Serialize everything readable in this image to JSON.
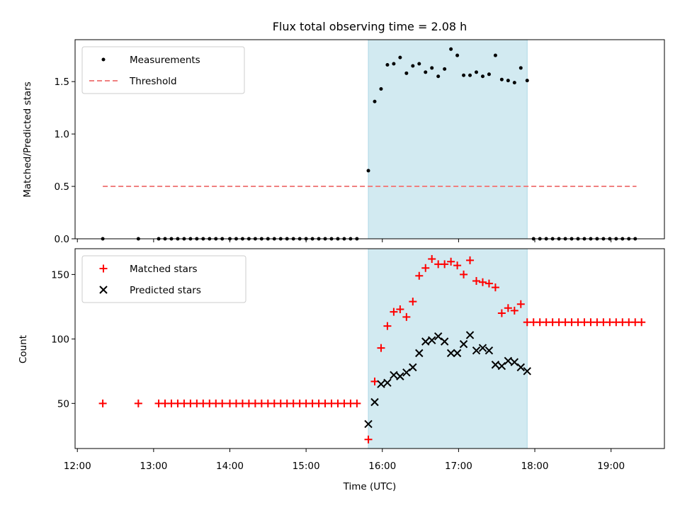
{
  "chart_data": {
    "title": "Flux total observing time = 2.08 h",
    "xlabel": "Time (UTC)",
    "x_ticks": [
      "12:00",
      "13:00",
      "14:00",
      "15:00",
      "16:00",
      "17:00",
      "18:00",
      "19:00"
    ],
    "highlight_span": {
      "start": "15:49",
      "end": "17:54",
      "color": "#add8e6"
    },
    "panels": [
      {
        "type": "scatter",
        "ylabel": "Matched/Predicted stars",
        "ylim": [
          0,
          1.9
        ],
        "y_ticks": [
          0.0,
          0.5,
          1.0,
          1.5
        ],
        "y_tick_labels": [
          "0.0",
          "0.5",
          "1.0",
          "1.5"
        ],
        "legend_position": "top-left",
        "threshold": {
          "name": "Threshold",
          "value": 0.5,
          "x_start": "12:20",
          "x_end": "19:20",
          "color": "#f08080"
        },
        "series": [
          {
            "name": "Measurements",
            "marker": "dot",
            "color": "#000000",
            "points": [
              [
                "12:20",
                0
              ],
              [
                "12:48",
                0
              ],
              [
                "13:04",
                0
              ],
              [
                "13:09",
                0
              ],
              [
                "13:14",
                0
              ],
              [
                "13:19",
                0
              ],
              [
                "13:24",
                0
              ],
              [
                "13:29",
                0
              ],
              [
                "13:34",
                0
              ],
              [
                "13:39",
                0
              ],
              [
                "13:44",
                0
              ],
              [
                "13:49",
                0
              ],
              [
                "13:54",
                0
              ],
              [
                "14:00",
                0
              ],
              [
                "14:05",
                0
              ],
              [
                "14:10",
                0
              ],
              [
                "14:15",
                0
              ],
              [
                "14:20",
                0
              ],
              [
                "14:25",
                0
              ],
              [
                "14:30",
                0
              ],
              [
                "14:35",
                0
              ],
              [
                "14:40",
                0
              ],
              [
                "14:45",
                0
              ],
              [
                "14:50",
                0
              ],
              [
                "14:55",
                0
              ],
              [
                "15:00",
                0
              ],
              [
                "15:05",
                0
              ],
              [
                "15:10",
                0
              ],
              [
                "15:15",
                0
              ],
              [
                "15:20",
                0
              ],
              [
                "15:25",
                0
              ],
              [
                "15:30",
                0
              ],
              [
                "15:35",
                0
              ],
              [
                "15:40",
                0
              ],
              [
                "15:49",
                0.65
              ],
              [
                "15:54",
                1.31
              ],
              [
                "15:59",
                1.43
              ],
              [
                "16:04",
                1.66
              ],
              [
                "16:09",
                1.67
              ],
              [
                "16:14",
                1.73
              ],
              [
                "16:19",
                1.58
              ],
              [
                "16:24",
                1.65
              ],
              [
                "16:29",
                1.67
              ],
              [
                "16:34",
                1.59
              ],
              [
                "16:39",
                1.63
              ],
              [
                "16:44",
                1.55
              ],
              [
                "16:49",
                1.62
              ],
              [
                "16:54",
                1.81
              ],
              [
                "16:59",
                1.75
              ],
              [
                "17:04",
                1.56
              ],
              [
                "17:09",
                1.56
              ],
              [
                "17:14",
                1.59
              ],
              [
                "17:19",
                1.55
              ],
              [
                "17:24",
                1.57
              ],
              [
                "17:29",
                1.75
              ],
              [
                "17:34",
                1.52
              ],
              [
                "17:39",
                1.51
              ],
              [
                "17:44",
                1.49
              ],
              [
                "17:49",
                1.63
              ],
              [
                "17:54",
                1.51
              ],
              [
                "17:59",
                0
              ],
              [
                "18:04",
                0
              ],
              [
                "18:09",
                0
              ],
              [
                "18:14",
                0
              ],
              [
                "18:19",
                0
              ],
              [
                "18:24",
                0
              ],
              [
                "18:29",
                0
              ],
              [
                "18:34",
                0
              ],
              [
                "18:39",
                0
              ],
              [
                "18:44",
                0
              ],
              [
                "18:49",
                0
              ],
              [
                "18:54",
                0
              ],
              [
                "18:59",
                0
              ],
              [
                "19:04",
                0
              ],
              [
                "19:09",
                0
              ],
              [
                "19:14",
                0
              ],
              [
                "19:19",
                0
              ]
            ]
          }
        ]
      },
      {
        "type": "scatter",
        "ylabel": "Count",
        "ylim": [
          15,
          170
        ],
        "y_ticks": [
          50,
          100,
          150
        ],
        "y_tick_labels": [
          "50",
          "100",
          "150"
        ],
        "legend_position": "top-left",
        "series": [
          {
            "name": "Matched stars",
            "marker": "plus",
            "color": "#ff0000",
            "points": [
              [
                "12:20",
                50
              ],
              [
                "12:48",
                50
              ],
              [
                "13:04",
                50
              ],
              [
                "13:09",
                50
              ],
              [
                "13:14",
                50
              ],
              [
                "13:19",
                50
              ],
              [
                "13:24",
                50
              ],
              [
                "13:29",
                50
              ],
              [
                "13:34",
                50
              ],
              [
                "13:39",
                50
              ],
              [
                "13:44",
                50
              ],
              [
                "13:49",
                50
              ],
              [
                "13:54",
                50
              ],
              [
                "14:00",
                50
              ],
              [
                "14:05",
                50
              ],
              [
                "14:10",
                50
              ],
              [
                "14:15",
                50
              ],
              [
                "14:20",
                50
              ],
              [
                "14:25",
                50
              ],
              [
                "14:30",
                50
              ],
              [
                "14:35",
                50
              ],
              [
                "14:40",
                50
              ],
              [
                "14:45",
                50
              ],
              [
                "14:50",
                50
              ],
              [
                "14:55",
                50
              ],
              [
                "15:00",
                50
              ],
              [
                "15:05",
                50
              ],
              [
                "15:10",
                50
              ],
              [
                "15:15",
                50
              ],
              [
                "15:20",
                50
              ],
              [
                "15:25",
                50
              ],
              [
                "15:30",
                50
              ],
              [
                "15:35",
                50
              ],
              [
                "15:40",
                50
              ],
              [
                "15:49",
                22
              ],
              [
                "15:54",
                67
              ],
              [
                "15:59",
                93
              ],
              [
                "16:04",
                110
              ],
              [
                "16:09",
                121
              ],
              [
                "16:14",
                123
              ],
              [
                "16:19",
                117
              ],
              [
                "16:24",
                129
              ],
              [
                "16:29",
                149
              ],
              [
                "16:34",
                155
              ],
              [
                "16:39",
                162
              ],
              [
                "16:44",
                158
              ],
              [
                "16:49",
                158
              ],
              [
                "16:54",
                160
              ],
              [
                "16:59",
                157
              ],
              [
                "17:04",
                150
              ],
              [
                "17:09",
                161
              ],
              [
                "17:14",
                145
              ],
              [
                "17:19",
                144
              ],
              [
                "17:24",
                143
              ],
              [
                "17:29",
                140
              ],
              [
                "17:34",
                120
              ],
              [
                "17:39",
                124
              ],
              [
                "17:44",
                122
              ],
              [
                "17:49",
                127
              ],
              [
                "17:54",
                113
              ],
              [
                "17:59",
                113
              ],
              [
                "18:04",
                113
              ],
              [
                "18:09",
                113
              ],
              [
                "18:14",
                113
              ],
              [
                "18:19",
                113
              ],
              [
                "18:24",
                113
              ],
              [
                "18:29",
                113
              ],
              [
                "18:34",
                113
              ],
              [
                "18:39",
                113
              ],
              [
                "18:44",
                113
              ],
              [
                "18:49",
                113
              ],
              [
                "18:54",
                113
              ],
              [
                "18:59",
                113
              ],
              [
                "19:04",
                113
              ],
              [
                "19:09",
                113
              ],
              [
                "19:14",
                113
              ],
              [
                "19:19",
                113
              ],
              [
                "19:24",
                113
              ]
            ]
          },
          {
            "name": "Predicted stars",
            "marker": "cross",
            "color": "#000000",
            "points": [
              [
                "15:49",
                34
              ],
              [
                "15:54",
                51
              ],
              [
                "15:59",
                65
              ],
              [
                "16:04",
                66
              ],
              [
                "16:09",
                72
              ],
              [
                "16:14",
                71
              ],
              [
                "16:19",
                74
              ],
              [
                "16:24",
                78
              ],
              [
                "16:29",
                89
              ],
              [
                "16:34",
                98
              ],
              [
                "16:39",
                99
              ],
              [
                "16:44",
                102
              ],
              [
                "16:49",
                98
              ],
              [
                "16:54",
                89
              ],
              [
                "16:59",
                89
              ],
              [
                "17:04",
                96
              ],
              [
                "17:09",
                103
              ],
              [
                "17:14",
                91
              ],
              [
                "17:19",
                93
              ],
              [
                "17:24",
                91
              ],
              [
                "17:29",
                80
              ],
              [
                "17:34",
                79
              ],
              [
                "17:39",
                83
              ],
              [
                "17:44",
                82
              ],
              [
                "17:49",
                78
              ],
              [
                "17:54",
                75
              ]
            ]
          }
        ]
      }
    ]
  }
}
